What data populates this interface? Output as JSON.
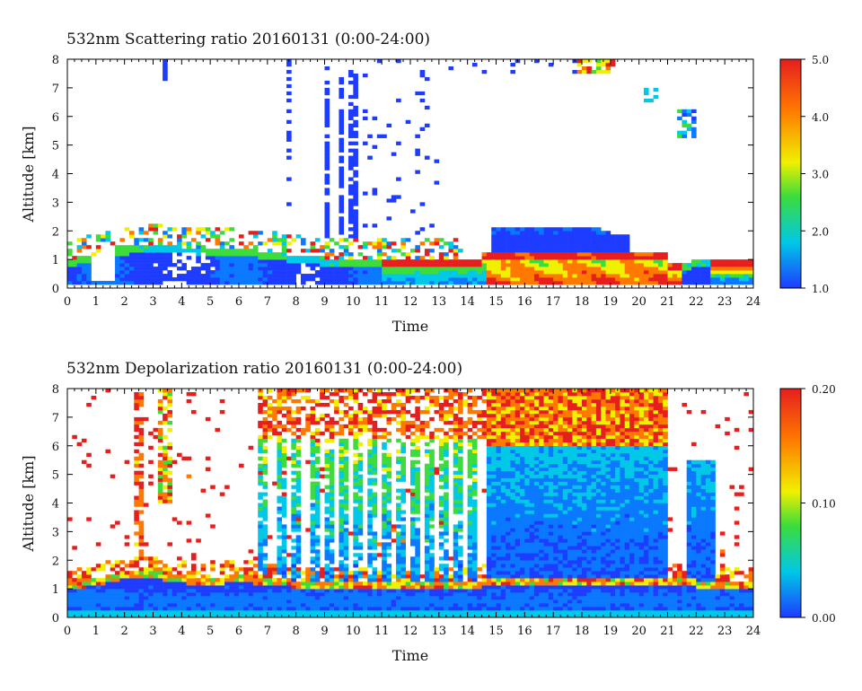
{
  "chart_data": [
    {
      "type": "heatmap",
      "title": "532nm Scattering ratio  20160131 (0:00-24:00)",
      "xlabel": "Time",
      "ylabel": "Altitude [km]",
      "xlim": [
        0,
        24
      ],
      "ylim": [
        0,
        8
      ],
      "x_ticks": [
        "0",
        "1",
        "2",
        "3",
        "4",
        "5",
        "6",
        "7",
        "8",
        "9",
        "10",
        "11",
        "12",
        "13",
        "14",
        "15",
        "16",
        "17",
        "18",
        "19",
        "20",
        "21",
        "22",
        "23",
        "24"
      ],
      "y_ticks": [
        "0",
        "1",
        "2",
        "3",
        "4",
        "5",
        "6",
        "7",
        "8"
      ],
      "colorbar": {
        "min": 1.0,
        "max": 5.0,
        "ticks": [
          "1.0",
          "2.0",
          "3.0",
          "4.0",
          "5.0"
        ]
      },
      "colors": [
        "#1e3cff",
        "#00c8e6",
        "#3cdc3c",
        "#f0f000",
        "#ff7800",
        "#e61e1e"
      ],
      "features": [
        {
          "x": [
            0,
            24
          ],
          "y": [
            0,
            1.3
          ],
          "value": "1.5-4.8",
          "note": "boundary layer; high ratio (>4) from 15 to 21 h"
        },
        {
          "x": [
            9,
            10.3
          ],
          "y": [
            1,
            8
          ],
          "value": "1.2-1.8",
          "note": "vertical cloud columns"
        },
        {
          "x": [
            15,
            19.5
          ],
          "y": [
            1,
            2.2
          ],
          "value": "1.2-2.0",
          "note": "elevated layer"
        },
        {
          "x": [
            18,
            19.2
          ],
          "y": [
            7.5,
            8
          ],
          "value": "3.0-5.0"
        },
        {
          "x": [
            21.5,
            22
          ],
          "y": [
            5.3,
            6
          ],
          "value": "1.5-3.0"
        }
      ]
    },
    {
      "type": "heatmap",
      "title": "532nm Depolarization ratio  20160131 (0:00-24:00)",
      "xlabel": "Time",
      "ylabel": "Altitude [km]",
      "xlim": [
        0,
        24
      ],
      "ylim": [
        0,
        8
      ],
      "x_ticks": [
        "0",
        "1",
        "2",
        "3",
        "4",
        "5",
        "6",
        "7",
        "8",
        "9",
        "10",
        "11",
        "12",
        "13",
        "14",
        "15",
        "16",
        "17",
        "18",
        "19",
        "20",
        "21",
        "22",
        "23",
        "24"
      ],
      "y_ticks": [
        "0",
        "1",
        "2",
        "3",
        "4",
        "5",
        "6",
        "7",
        "8"
      ],
      "colorbar": {
        "min": 0.0,
        "max": 0.2,
        "ticks": [
          "0.00",
          "0.10",
          "0.20"
        ]
      },
      "colors": [
        "#1e3cff",
        "#00c8e6",
        "#3cdc3c",
        "#f0f000",
        "#ff7800",
        "#e61e1e"
      ],
      "features": [
        {
          "x": [
            0,
            24
          ],
          "y": [
            0,
            1.3
          ],
          "value": "0.01-0.04",
          "note": "boundary layer"
        },
        {
          "x": [
            14.5,
            21
          ],
          "y": [
            1.5,
            6
          ],
          "value": "0.04-0.10"
        },
        {
          "x": [
            6.5,
            20
          ],
          "y": [
            6,
            8
          ],
          "value": "0.15-0.20"
        },
        {
          "x": [
            3.2,
            3.6
          ],
          "y": [
            4,
            8
          ],
          "value": "0.10-0.20"
        },
        {
          "x": [
            2.4,
            2.7
          ],
          "y": [
            1.5,
            8
          ],
          "value": "0.15-0.20"
        }
      ]
    }
  ]
}
